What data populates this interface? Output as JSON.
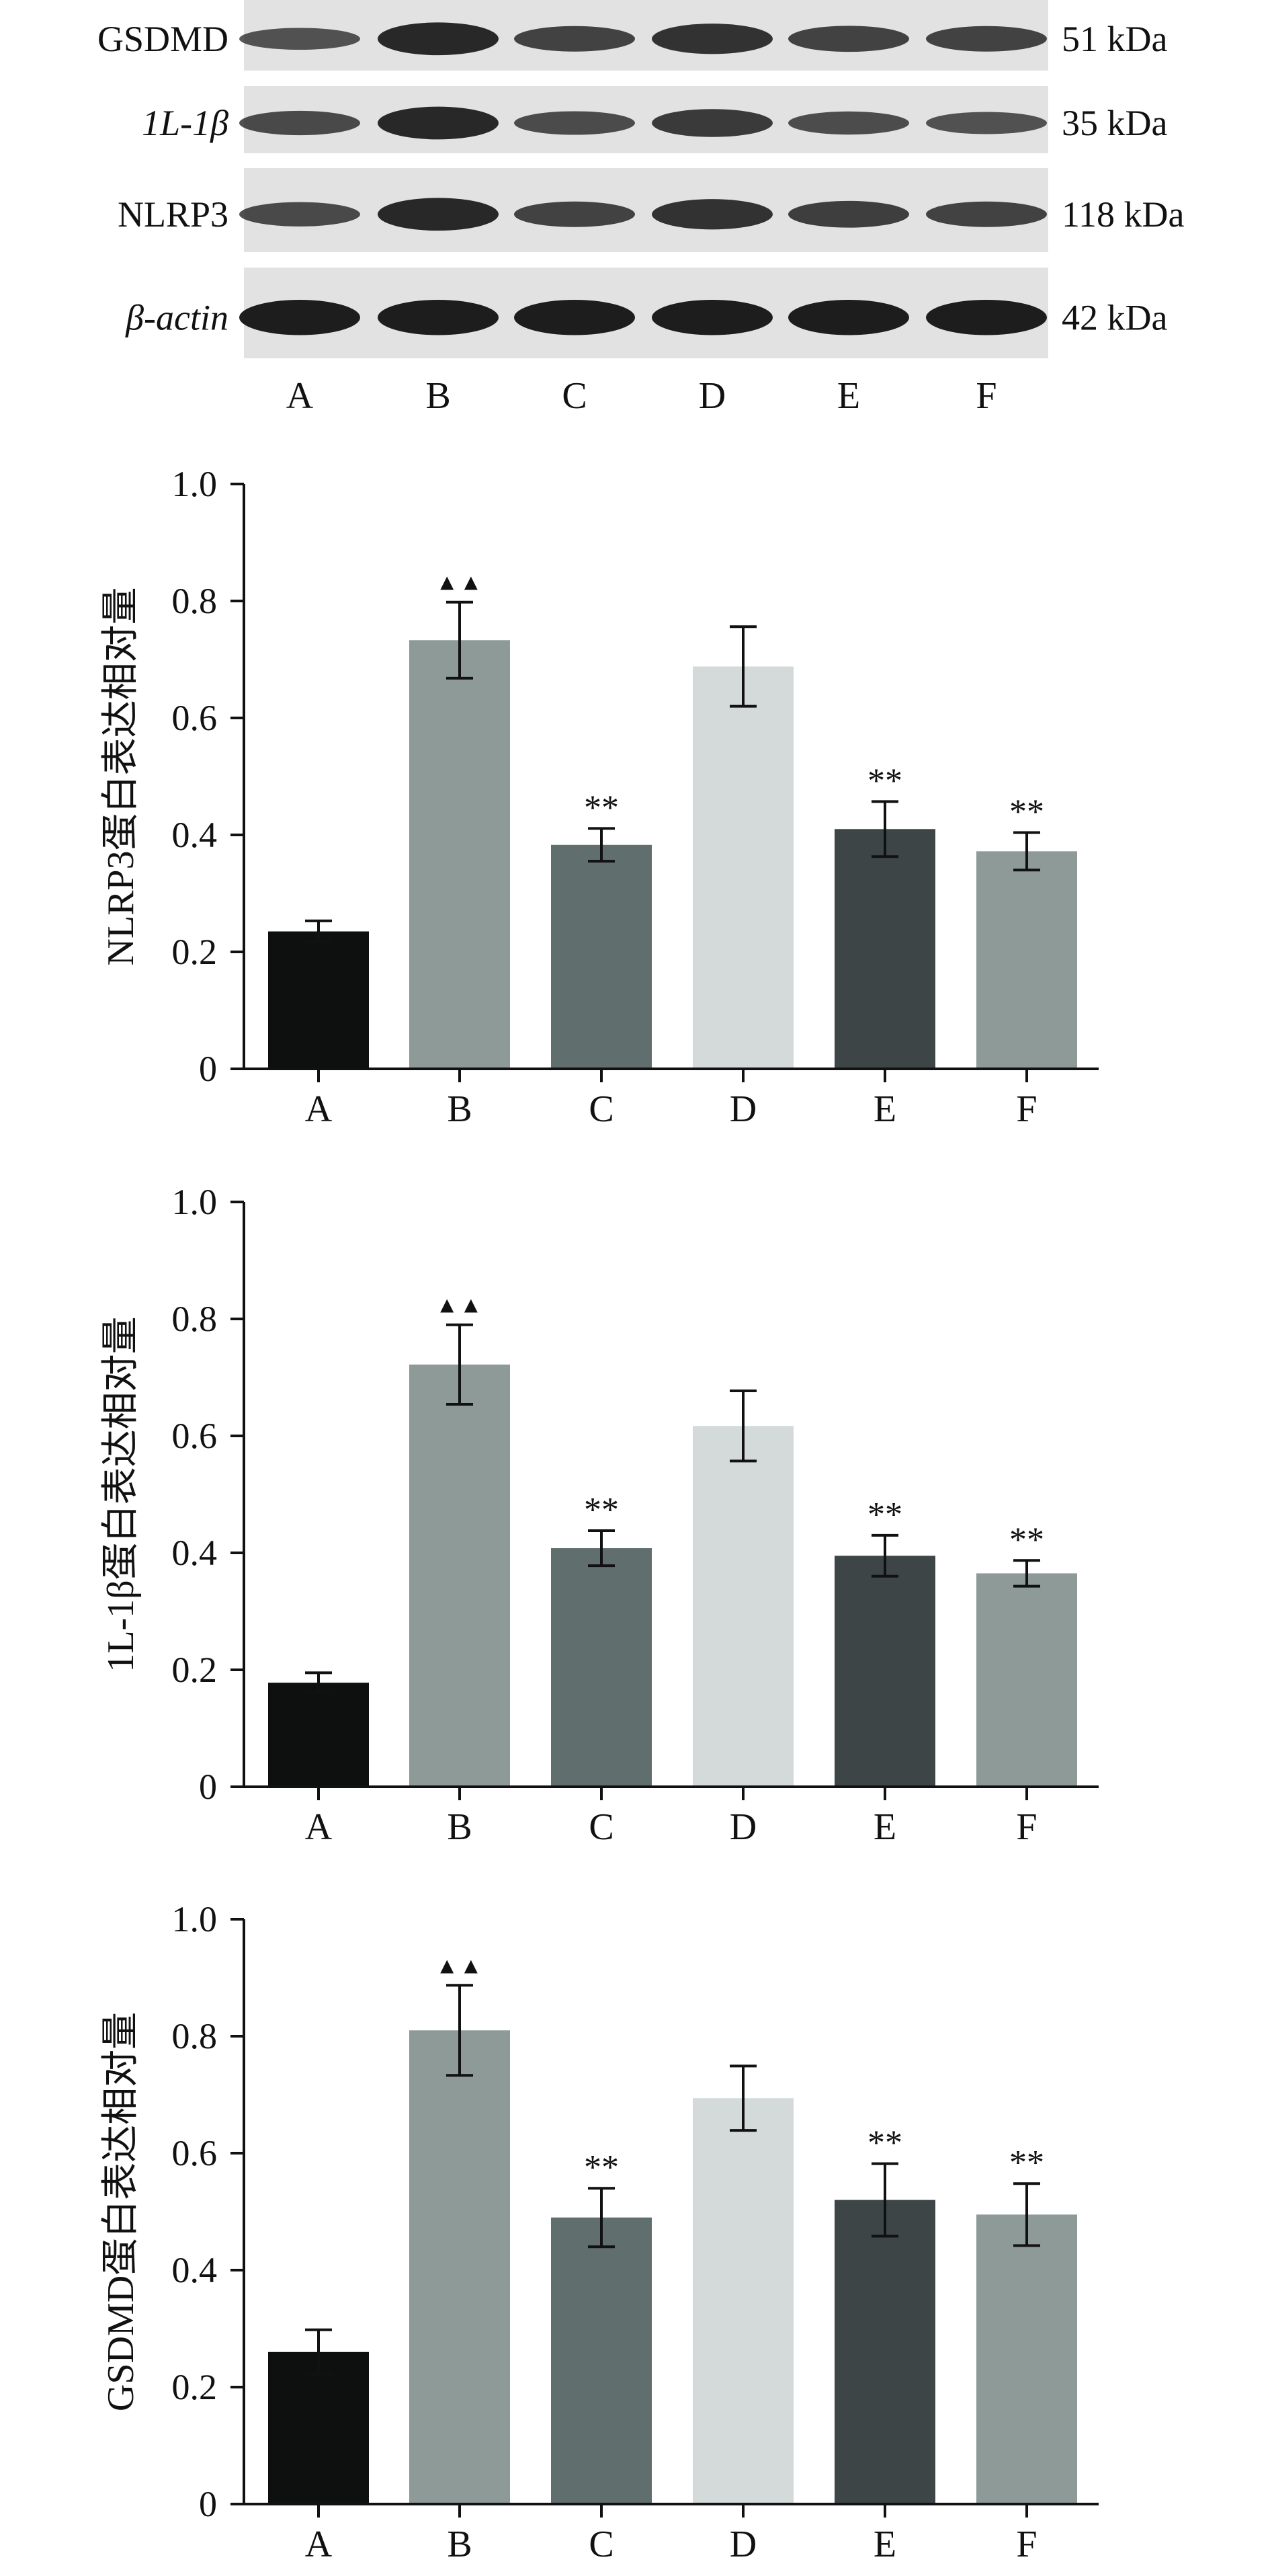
{
  "blot": {
    "rows": [
      {
        "label": "GSDMD",
        "size": "51 kDa"
      },
      {
        "label": "1L-1β",
        "size": "35 kDa"
      },
      {
        "label": "NLRP3",
        "size": "118 kDa"
      },
      {
        "label": "β-actin",
        "size": "42 kDa"
      }
    ],
    "lanes": [
      "A",
      "B",
      "C",
      "D",
      "E",
      "F"
    ],
    "band_intensity": {
      "GSDMD": [
        0.35,
        0.8,
        0.5,
        0.7,
        0.52,
        0.5
      ],
      "1L-1β": [
        0.45,
        0.8,
        0.42,
        0.6,
        0.4,
        0.36
      ],
      "NLRP3": [
        0.45,
        0.8,
        0.5,
        0.7,
        0.55,
        0.5
      ],
      "β-actin": [
        0.9,
        0.9,
        0.9,
        0.9,
        0.9,
        0.9
      ]
    }
  },
  "chart_data": [
    {
      "type": "bar",
      "categories": [
        "A",
        "B",
        "C",
        "D",
        "E",
        "F"
      ],
      "values": [
        0.235,
        0.733,
        0.383,
        0.688,
        0.41,
        0.372
      ],
      "errors": [
        0.018,
        0.065,
        0.028,
        0.068,
        0.047,
        0.032
      ],
      "annotations": [
        "",
        "▲▲",
        "**",
        "",
        "**",
        "**"
      ],
      "ylabel": "NLRP3蛋白表达相对量",
      "ylim": [
        0,
        1.0
      ],
      "yticks": [
        "0",
        "0.2",
        "0.4",
        "0.6",
        "0.8",
        "1.0"
      ]
    },
    {
      "type": "bar",
      "categories": [
        "A",
        "B",
        "C",
        "D",
        "E",
        "F"
      ],
      "values": [
        0.178,
        0.722,
        0.408,
        0.617,
        0.395,
        0.365
      ],
      "errors": [
        0.017,
        0.068,
        0.03,
        0.06,
        0.035,
        0.022
      ],
      "annotations": [
        "",
        "▲▲",
        "**",
        "",
        "**",
        "**"
      ],
      "ylabel": "1L-1β蛋白表达相对量",
      "ylim": [
        0,
        1.0
      ],
      "yticks": [
        "0",
        "0.2",
        "0.4",
        "0.6",
        "0.8",
        "1.0"
      ]
    },
    {
      "type": "bar",
      "categories": [
        "A",
        "B",
        "C",
        "D",
        "E",
        "F"
      ],
      "values": [
        0.26,
        0.81,
        0.49,
        0.694,
        0.52,
        0.495
      ],
      "errors": [
        0.038,
        0.077,
        0.05,
        0.055,
        0.062,
        0.053
      ],
      "annotations": [
        "",
        "▲▲",
        "**",
        "",
        "**",
        "**"
      ],
      "ylabel": "GSDMD蛋白表达相对量",
      "ylim": [
        0,
        1.0
      ],
      "yticks": [
        "0",
        "0.2",
        "0.4",
        "0.6",
        "0.8",
        "1.0"
      ]
    }
  ],
  "colors": {
    "bars": [
      "#0e0f0f",
      "#8d9a98",
      "#606e6e",
      "#d3dad9",
      "#3d4547",
      "#8d9a98"
    ],
    "axis": "#111111",
    "membrane": "#e2e2e2",
    "band": "#151515"
  }
}
